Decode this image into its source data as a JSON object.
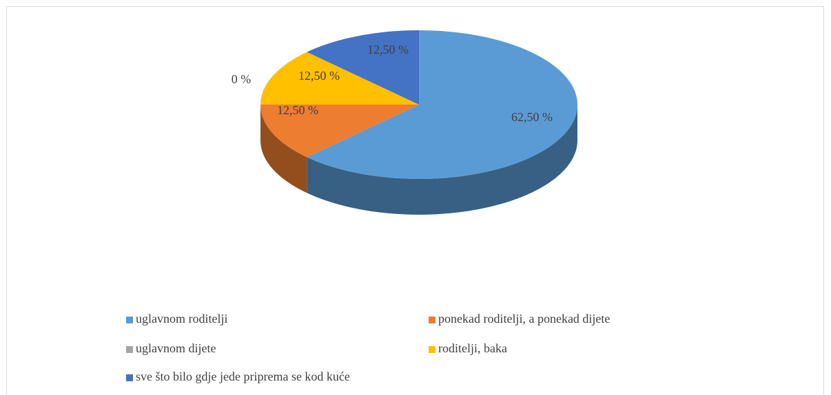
{
  "chart_data": {
    "type": "pie3d",
    "categories": [
      "uglavnom roditelji",
      "ponekad roditelji, a ponekad dijete",
      "uglavnom dijete",
      "roditelji, baka",
      "sve što bilo gdje jede priprema se kod kuće"
    ],
    "values": [
      62.5,
      12.5,
      0,
      12.5,
      12.5
    ],
    "value_labels": [
      "62,50 %",
      "12,50 %",
      "0 %",
      "12,50 %",
      "12,50 %"
    ],
    "colors": [
      "#5b9bd5",
      "#ed7d31",
      "#a5a5a5",
      "#ffc000",
      "#4472c4"
    ],
    "legend": "bottom"
  }
}
